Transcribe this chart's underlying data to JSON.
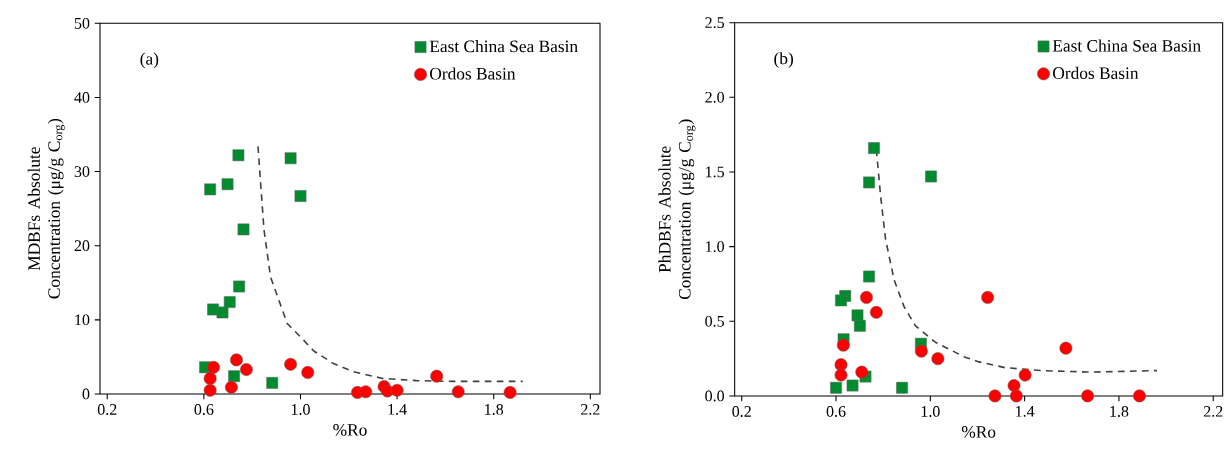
{
  "chart_data": [
    {
      "type": "scatter",
      "xlabel": "%Ro",
      "ylabel": "MDBFs Absolute Concentration (μg/g C$_{org}$)",
      "annotations": [
        "(a)"
      ],
      "xlim": [
        0.17,
        2.24
      ],
      "ylim": [
        0,
        50
      ],
      "xticks": [
        0.2,
        0.6,
        {
          "value": 1.0,
          "label": "1.0"
        },
        1.4,
        1.8,
        2.2
      ],
      "yticks": [
        0,
        10,
        20,
        30,
        40,
        50
      ],
      "grid": false,
      "legend": "top right",
      "series": [
        {
          "name": "East China Sea Basin",
          "color": "#008c2e",
          "marker": "square",
          "x": [
            0.743,
            0.959,
            0.626,
            0.698,
            1.0,
            0.764,
            0.746,
            0.638,
            0.677,
            0.707,
            0.605,
            0.725,
            0.883
          ],
          "values": [
            32.2,
            31.8,
            27.6,
            28.3,
            26.7,
            22.2,
            14.5,
            11.4,
            11.0,
            12.4,
            3.6,
            2.4,
            1.5
          ]
        },
        {
          "name": "Ordos Basin",
          "color": "#ff0000",
          "marker": "circle",
          "x": [
            0.64,
            0.626,
            0.626,
            0.735,
            0.776,
            0.714,
            0.959,
            1.03,
            1.236,
            1.27,
            1.346,
            1.36,
            1.4,
            1.564,
            1.653,
            1.868
          ],
          "values": [
            3.6,
            2.1,
            0.5,
            4.6,
            3.3,
            0.9,
            4.0,
            2.9,
            0.2,
            0.3,
            1.0,
            0.4,
            0.5,
            2.4,
            0.3,
            0.2
          ]
        },
        {
          "type": "line",
          "color": "#404040",
          "line_style": "dashed",
          "marker": "none",
          "x": [
            0.824,
            0.849,
            0.876,
            0.945,
            1.0,
            1.055,
            1.137,
            1.22,
            1.34,
            1.48,
            1.632,
            1.92
          ],
          "values": [
            33.4,
            22.1,
            15.8,
            9.5,
            7.7,
            5.8,
            4.1,
            3.0,
            2.1,
            1.8,
            1.7,
            1.7
          ]
        }
      ]
    },
    {
      "type": "scatter",
      "xlabel": "%Ro",
      "ylabel": "PhDBFs Absolute Concentration (μg/g C$_{org}$)",
      "annotations": [
        "(b)"
      ],
      "xlim": [
        0.17,
        2.24
      ],
      "ylim": [
        0,
        2.5
      ],
      "xticks": [
        0.2,
        0.6,
        {
          "value": 1.0,
          "label": "1.0"
        },
        1.4,
        1.8,
        2.2
      ],
      "yticks": [
        {
          "value": 0,
          "label": "0.0"
        },
        0.5,
        {
          "value": 1,
          "label": "1.0"
        },
        1.5,
        {
          "value": 2,
          "label": "2.0"
        },
        2.5
      ],
      "grid": false,
      "legend": "top right",
      "series": [
        {
          "name": "East China Sea Basin",
          "color": "#008c2e",
          "marker": "square",
          "x": [
            0.761,
            0.74,
            1.003,
            0.74,
            0.639,
            0.621,
            0.691,
            0.701,
            0.632,
            0.96,
            0.725,
            0.6,
            0.67,
            0.88
          ],
          "values": [
            1.66,
            1.43,
            1.47,
            0.8,
            0.67,
            0.64,
            0.54,
            0.47,
            0.38,
            0.35,
            0.13,
            0.055,
            0.07,
            0.055
          ]
        },
        {
          "name": "Ordos Basin",
          "color": "#ff0000",
          "marker": "circle",
          "x": [
            0.729,
            0.771,
            0.631,
            0.962,
            1.032,
            0.621,
            0.621,
            0.709,
            1.243,
            1.575,
            1.402,
            1.355,
            1.274,
            1.365,
            1.667,
            1.887
          ],
          "values": [
            0.66,
            0.56,
            0.34,
            0.3,
            0.25,
            0.21,
            0.14,
            0.16,
            0.66,
            0.32,
            0.14,
            0.07,
            0.0,
            0.0,
            0.0,
            0.0
          ]
        },
        {
          "type": "line",
          "color": "#404040",
          "line_style": "dashed",
          "marker": "none",
          "x": [
            0.771,
            0.789,
            0.81,
            0.846,
            0.888,
            0.937,
            1.021,
            1.147,
            1.203,
            1.316,
            1.47,
            1.68,
            1.961
          ],
          "values": [
            1.65,
            1.34,
            1.05,
            0.78,
            0.6,
            0.47,
            0.36,
            0.26,
            0.23,
            0.19,
            0.17,
            0.16,
            0.17
          ]
        }
      ]
    }
  ]
}
